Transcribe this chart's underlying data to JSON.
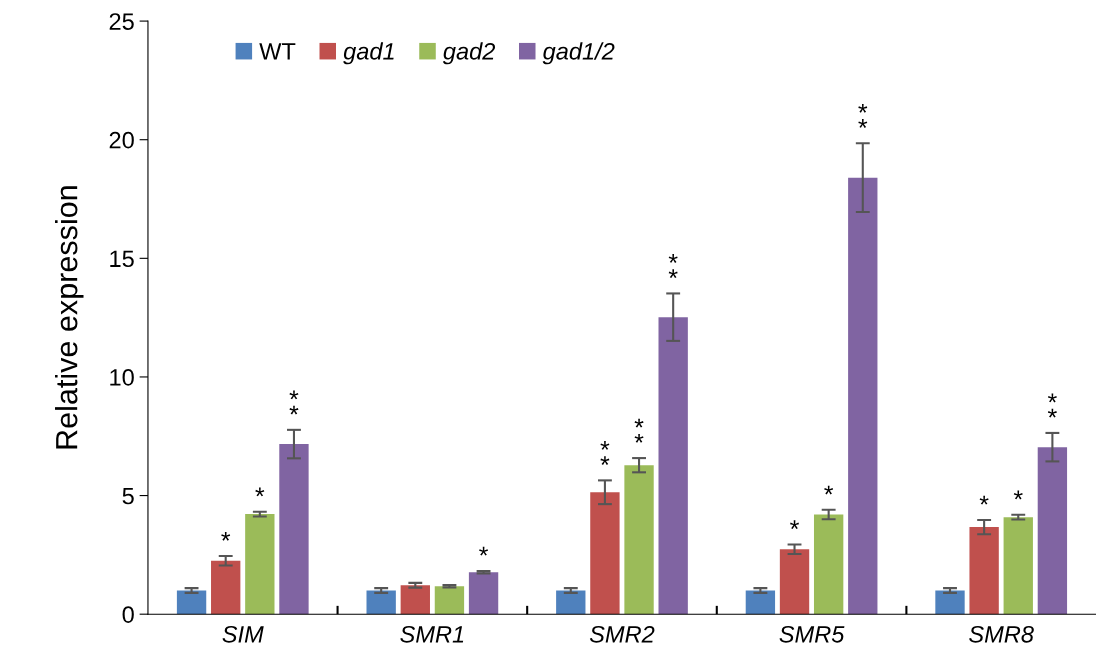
{
  "chart_data": {
    "type": "bar",
    "ylabel": "Relative expression",
    "categories": [
      "SIM",
      "SMR1",
      "SMR2",
      "SMR5",
      "SMR8"
    ],
    "ylim": [
      0,
      25
    ],
    "yticks": [
      0,
      5,
      10,
      15,
      20,
      25
    ],
    "legend": "top left",
    "grid": false,
    "series": [
      {
        "name": "WT",
        "color": "#4f81bd",
        "values": [
          1.0,
          1.0,
          1.0,
          1.0,
          1.0
        ],
        "errors": [
          0.1,
          0.1,
          0.1,
          0.1,
          0.1
        ],
        "value_labels": [
          null,
          null,
          null,
          null,
          null
        ]
      },
      {
        "name": "gad1",
        "color": "#c0504d",
        "values": [
          2.25,
          1.22,
          5.14,
          2.74,
          3.67
        ],
        "errors": [
          0.2,
          0.1,
          0.5,
          0.2,
          0.3
        ],
        "value_labels": [
          "*",
          null,
          "**",
          "*",
          "*"
        ]
      },
      {
        "name": "gad2",
        "color": "#9bbb59",
        "values": [
          4.22,
          1.18,
          6.28,
          4.2,
          4.09
        ],
        "errors": [
          0.1,
          0.05,
          0.3,
          0.2,
          0.1
        ],
        "value_labels": [
          "*",
          null,
          "**",
          "*",
          "*"
        ]
      },
      {
        "name": "gad1/2",
        "color": "#8064a2",
        "values": [
          7.17,
          1.77,
          12.52,
          18.4,
          7.04
        ],
        "errors": [
          0.6,
          0.05,
          1.0,
          1.45,
          0.6
        ],
        "value_labels": [
          "**",
          "*",
          "**",
          "**",
          "**"
        ]
      }
    ]
  }
}
